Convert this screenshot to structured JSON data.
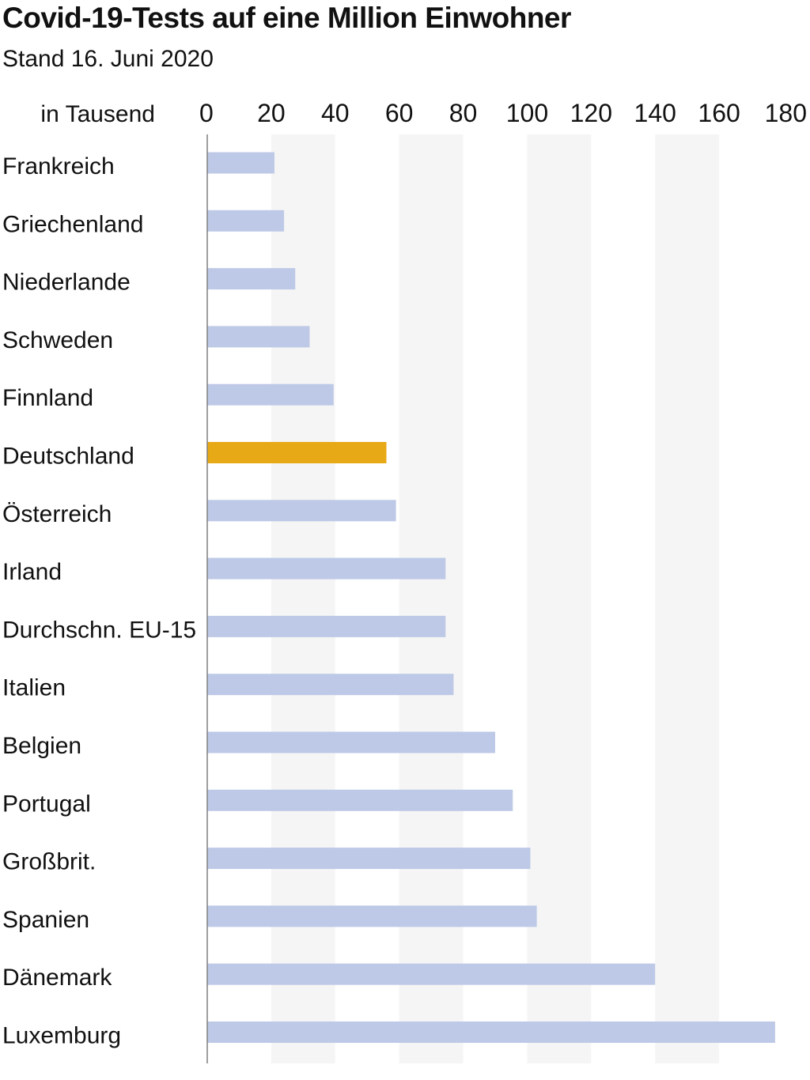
{
  "title": "Covid-19-Tests auf eine Million Einwohner",
  "subtitle": "Stand 16. Juni 2020",
  "colors": {
    "bar": "#bdc9e6",
    "highlight": "#e8a917",
    "band": "#f5f5f5",
    "axis": "#7f7f7f",
    "text": "#111111"
  },
  "chart_data": {
    "type": "bar",
    "orientation": "horizontal",
    "unit_label": "in Tausend",
    "xlim": [
      0,
      180
    ],
    "xticks": [
      0,
      20,
      40,
      60,
      80,
      100,
      120,
      140,
      160,
      180
    ],
    "grid": "alternating vertical bands",
    "categories": [
      "Frankreich",
      "Griechenland",
      "Niederlande",
      "Schweden",
      "Finnland",
      "Deutschland",
      "Österreich",
      "Irland",
      "Durchschn. EU-15",
      "Italien",
      "Belgien",
      "Portugal",
      "Großbrit.",
      "Spanien",
      "Dänemark",
      "Luxemburg"
    ],
    "values": [
      21,
      24,
      27.5,
      32,
      39.5,
      56,
      59,
      74.5,
      74.5,
      77,
      90,
      95.5,
      101,
      103,
      140,
      177.5
    ],
    "highlight": "Deutschland"
  }
}
